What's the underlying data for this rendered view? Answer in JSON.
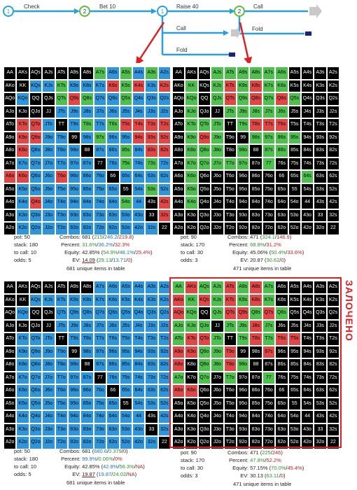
{
  "tree": {
    "nodes": [
      "1",
      "2",
      "1",
      "2"
    ],
    "actions": {
      "check": "Check",
      "bet": "Bet 10",
      "raise": "Raise 40",
      "call_top": "Call",
      "call_mid": "Call",
      "fold_mid": "Fold",
      "fold_bottom": "Fold"
    }
  },
  "hand_labels": [
    [
      "AA",
      "AKs",
      "AQs",
      "AJs",
      "ATs",
      "A9s",
      "A8s",
      "A7s",
      "A6s",
      "A5s",
      "A4s",
      "A3s",
      "A2s"
    ],
    [
      "AKo",
      "KK",
      "KQs",
      "KJs",
      "KTs",
      "K9s",
      "K8s",
      "K7s",
      "K6s",
      "K5s",
      "K4s",
      "K3s",
      "K2s"
    ],
    [
      "AQo",
      "KQo",
      "QQ",
      "QJs",
      "QTs",
      "Q9s",
      "Q8s",
      "Q7s",
      "Q6s",
      "Q5s",
      "Q4s",
      "Q3s",
      "Q2s"
    ],
    [
      "AJo",
      "KJo",
      "QJo",
      "JJ",
      "JTs",
      "J9s",
      "J8s",
      "J7s",
      "J6s",
      "J5s",
      "J4s",
      "J3s",
      "J2s"
    ],
    [
      "ATo",
      "KTo",
      "QTo",
      "JTo",
      "TT",
      "T9s",
      "T8s",
      "T7s",
      "T6s",
      "T5s",
      "T4s",
      "T3s",
      "T2s"
    ],
    [
      "A9o",
      "K9o",
      "Q9o",
      "J9o",
      "T9o",
      "99",
      "98s",
      "97s",
      "96s",
      "95s",
      "94s",
      "93s",
      "92s"
    ],
    [
      "A8o",
      "K8o",
      "Q8o",
      "J8o",
      "T8o",
      "98o",
      "88",
      "87s",
      "86s",
      "85s",
      "84s",
      "83s",
      "82s"
    ],
    [
      "A7o",
      "K7o",
      "Q7o",
      "J7o",
      "T7o",
      "97o",
      "87o",
      "77",
      "76s",
      "75s",
      "74s",
      "73s",
      "72s"
    ],
    [
      "A6o",
      "K6o",
      "Q6o",
      "J6o",
      "T6o",
      "96o",
      "86o",
      "76o",
      "66",
      "65s",
      "64s",
      "63s",
      "62s"
    ],
    [
      "A5o",
      "K5o",
      "Q5o",
      "J5o",
      "T5o",
      "95o",
      "85o",
      "75o",
      "65o",
      "55",
      "54s",
      "53s",
      "52s"
    ],
    [
      "A4o",
      "K4o",
      "Q4o",
      "J4o",
      "T4o",
      "94o",
      "84o",
      "74o",
      "64o",
      "54o",
      "44",
      "43s",
      "42s"
    ],
    [
      "A3o",
      "K3o",
      "Q3o",
      "J3o",
      "T3o",
      "93o",
      "83o",
      "73o",
      "63o",
      "53o",
      "43o",
      "33",
      "32s"
    ],
    [
      "A2o",
      "K2o",
      "Q2o",
      "J2o",
      "T2o",
      "92o",
      "82o",
      "72o",
      "62o",
      "52o",
      "42o",
      "32o",
      "22"
    ]
  ],
  "colors": {
    "green": "#4fbf4f",
    "red": "#e04848",
    "blue": "#2f96dc",
    "black": "#000000",
    "arrow_red": "#e02020",
    "tree_blue": "#2a9fe0",
    "tree_green": "#5cbf3c"
  },
  "panels": [
    {
      "id": "tl",
      "fills": [
        "kkkkkkkgbgbgb",
        "kkbbgbbbrgrbr",
        "kbkkgrgbbgbbb",
        "kkkkbbbbbbbbb",
        "krrbkbgbgrrrr",
        "krrbbkbgbbrrr",
        "krbbbbkbbgbrr",
        "kbbbbbbkbgbgb",
        "rrbbrbbbkbbbb",
        "kbbbbbbbbkbgb",
        "kbrbbbbbbgbkr",
        "kbbbbbbbbbbkr",
        "kbbbbbbbbbbbk"
      ],
      "stats": {
        "pot": "pot: 50",
        "stack": "stack: 180",
        "to_call": "to call: 10",
        "odds": "odds: 5",
        "combos_label": "Combos:",
        "combos_total": "681",
        "combos_a": "215",
        "combos_b": "246.2",
        "combos_c": "219.8",
        "percent_label": "Percent:",
        "percent_a": "31.6%",
        "percent_b": "36.2%",
        "percent_c": "32.3%",
        "equity_label": "Equity:",
        "equity_total": "42.85%",
        "equity_a": "54.9%",
        "equity_b": "48.1%",
        "equity_c": "25.4%",
        "ev_label": "EV:",
        "ev_total": "14.09",
        "ev_a": "29.13",
        "ev_b": "13.71",
        "ev_c": "0",
        "unique": "681 unique items in table"
      }
    },
    {
      "id": "tr",
      "fills": [
        "kkkggggggkkkk",
        "kgkgrgrggkkkk",
        "kgkgrgrgrgkkk",
        "kgkkgggggkkkk",
        "kgggkgrrrkkkk",
        "kgrgkkggggkkk",
        "kgggkgkggkkkk",
        "kgggggkgkkkkk",
        "kgkkkkkkkkgkk",
        "kgkkkkkkkkkkk",
        "kgkkkkkkkkkkk",
        "kkkkkkkkkkkkk",
        "kkkkkkkkkkkkk"
      ],
      "stats": {
        "pot": "pot: 90",
        "stack": "stack: 170",
        "to_call": "to call: 30",
        "odds": "odds: 3",
        "combos_label": "Combos:",
        "combos_total": "471",
        "combos_a": "324.1",
        "combos_b": "146.9",
        "percent_label": "Percent:",
        "percent_a": "68.8%",
        "percent_b": "31.2%",
        "equity_label": "Equity:",
        "equity_total": "45.06%",
        "equity_a": "50.4%",
        "equity_b": "33.6%",
        "ev_label": "EV:",
        "ev_total": "20.87",
        "ev_a": "30.62",
        "ev_b": "0",
        "unique": "471 unique items in table"
      }
    },
    {
      "id": "bl",
      "fills": [
        "kkkkkkkbbbbbb",
        "kkbbbbbbbbbbb",
        "kbkkbbbbbbbbb",
        "kkkkbbbbbbbbb",
        "kbbbkbbbbbbbb",
        "kbbbbkbbbbbbb",
        "kbbbbbkbbbbbb",
        "kbbbbbbkbbbbb",
        "kbbbbbbbkbbbb",
        "kbbbbbbbbkbbb",
        "kbbbbbbbbbbkb",
        "kbbbbbbbbbbkb",
        "kbbbbbbbbbbbk"
      ],
      "stats": {
        "pot": "pot: 50",
        "stack": "stack: 180",
        "to_call": "to call: 10",
        "odds": "odds: 5",
        "combos_label": "Combos:",
        "combos_total": "681",
        "combos_a": "680.6",
        "combos_b": "0.379",
        "combos_c": "0",
        "percent_label": "Percent:",
        "percent_a": "99.9%",
        "percent_b": "0.06%",
        "percent_c": "0%",
        "equity_label": "Equity:",
        "equity_total": "42.85%",
        "equity_a": "42.8%",
        "equity_b": "56.3%",
        "equity_c": "NA",
        "ev_label": "EV:",
        "ev_total": "19.87",
        "ev_a": "19.87",
        "ev_b": "24.02",
        "ev_c": "NA",
        "unique": "681 unique items in table"
      }
    },
    {
      "id": "br",
      "fills": [
        "grggrgrgkkkkk",
        "rgrgrgrgkkkkk",
        "rgkgrrgrgkkkk",
        "gggkggrgkkkkk",
        "grrgkgrgrrkkk",
        "rrggrkkrkkkkk",
        "rkggrgkkkkkkk",
        "gkgkgkkgkkkkk",
        "rrkkkkkkkkkkk",
        "kkkkkkkkkkkkk",
        "kkkkkkkkkkkkk",
        "kkkkkkkkkkkkk",
        "kkkkkkkkkkkkk"
      ],
      "stats": {
        "pot": "pot: 90",
        "stack": "stack: 170",
        "to_call": "to call: 30",
        "odds": "odds: 3",
        "combos_label": "Combos:",
        "combos_total": "471",
        "combos_a": "225",
        "combos_b": "246",
        "percent_label": "Percent:",
        "percent_a": "47.8%",
        "percent_b": "52.2%",
        "equity_label": "Equity:",
        "equity_total": "57.15%",
        "equity_a": "70.0%",
        "equity_b": "45.4%",
        "ev_label": "EV:",
        "ev_total": "30.13",
        "ev_a": "63.11",
        "ev_b": "0",
        "unique": "471 unique items in table"
      }
    }
  ],
  "stamp": "ЗАЛОЧЕНО"
}
